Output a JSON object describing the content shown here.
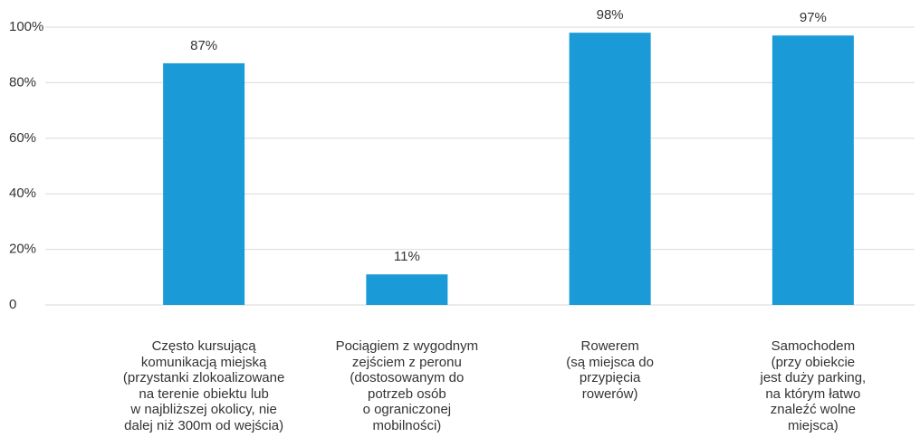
{
  "chart_data": {
    "type": "bar",
    "categories": [
      "Często kursującą\nkomunikacją miejską\n(przystanki zlokoalizowane\nna terenie obiektu lub\nw najbliższej okolicy, nie\ndalej niż 300m od wejścia)",
      "Pociągiem z wygodnym\nzejściem z peronu\n(dostosowanym do\npotrzeb osób\no ograniczonej\nmobilności)",
      "Rowerem\n(są miejsca do\nprzypięcia\nrowerów)",
      "Samochodem\n(przy obiekcie\njest duży parking,\nna którym łatwo\nznaleźć wolne\nmiejsca)"
    ],
    "values": [
      87,
      11,
      98,
      97
    ],
    "value_labels": [
      "87%",
      "11%",
      "98%",
      "97%"
    ],
    "color": "#1a9bd7",
    "ylim": [
      0,
      100
    ],
    "yticks": [
      0,
      {
        "value": 20,
        "label": "20%"
      },
      {
        "value": 40,
        "label": "40%"
      },
      {
        "value": 60,
        "label": "60%"
      },
      {
        "value": 80,
        "label": "80%"
      },
      {
        "value": 100,
        "label": "100%"
      }
    ],
    "grid": true
  }
}
